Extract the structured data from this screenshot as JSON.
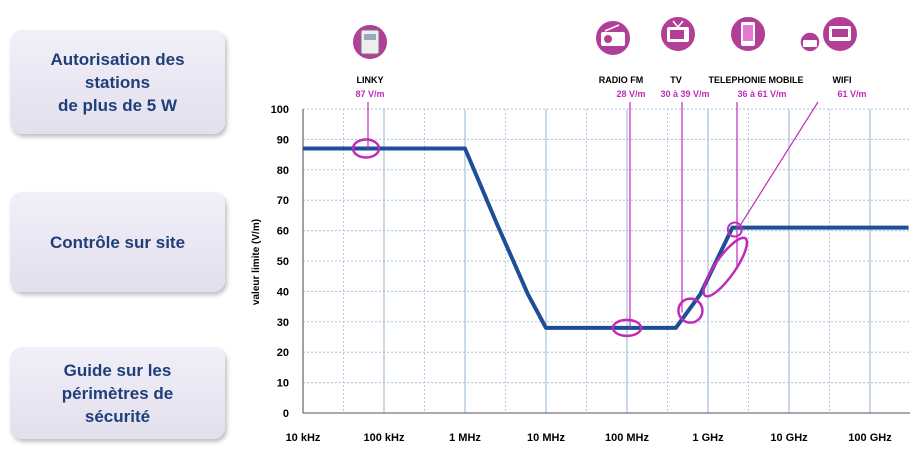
{
  "side_panels": [
    {
      "text": "Autorisation  des\nstations\nde plus de 5 W"
    },
    {
      "text": "Contrôle  sur site"
    },
    {
      "text": "Guide sur les\npérimètres  de\nsécurité"
    }
  ],
  "colors": {
    "line": "#1f4e99",
    "accent": "#c02bb8",
    "grid": "#a7c0dc",
    "icon_bg": "#b13e97"
  },
  "chart_data": {
    "type": "line",
    "ylabel": "valeur limite (V/m)",
    "xlabel": "",
    "x_scale": "log",
    "ylim": [
      0,
      100
    ],
    "yticks": [
      0,
      10,
      20,
      30,
      40,
      50,
      60,
      70,
      80,
      90,
      100
    ],
    "xticks": [
      {
        "label": "10 kHz",
        "hz": 10000
      },
      {
        "label": "100 kHz",
        "hz": 100000
      },
      {
        "label": "1 MHz",
        "hz": 1000000
      },
      {
        "label": "10 MHz",
        "hz": 10000000
      },
      {
        "label": "100 MHz",
        "hz": 100000000
      },
      {
        "label": "1 GHz",
        "hz": 1000000000
      },
      {
        "label": "10 GHz",
        "hz": 10000000000
      },
      {
        "label": "100 GHz",
        "hz": 100000000000
      }
    ],
    "grid": true,
    "series": [
      {
        "points": [
          {
            "hz": 10000,
            "v": 87
          },
          {
            "hz": 1000000,
            "v": 87
          },
          {
            "hz": 2500000,
            "v": 62
          },
          {
            "hz": 6000000,
            "v": 39
          },
          {
            "hz": 10000000,
            "v": 28
          },
          {
            "hz": 400000000,
            "v": 28
          },
          {
            "hz": 800000000,
            "v": 39
          },
          {
            "hz": 2000000000,
            "v": 61
          },
          {
            "hz": 300000000000,
            "v": 61
          }
        ]
      }
    ],
    "annotations": [
      {
        "name": "LINKY",
        "value": "87 V/m",
        "icon": "linky-meter-icon",
        "target_hz": 60000,
        "target_v": 87
      },
      {
        "name": "RADIO FM",
        "value": "28  V/m",
        "icon": "radio-icon",
        "target_hz": 100000000,
        "target_v": 28
      },
      {
        "name": "TV",
        "value": "30 à 39 V/m",
        "icon": "tv-icon",
        "target_hz": 470000000,
        "target_v": 33
      },
      {
        "name": "TELEPHONIE MOBILE",
        "value": "36 à 61 V/m",
        "icon": "mobile-phone-icon",
        "target_hz": 1500000000,
        "target_v": 48
      },
      {
        "name": "WIFI",
        "value": "61 V/m",
        "icon": "wifi-router-icon",
        "target_hz": 2400000000,
        "target_v": 61
      }
    ]
  }
}
